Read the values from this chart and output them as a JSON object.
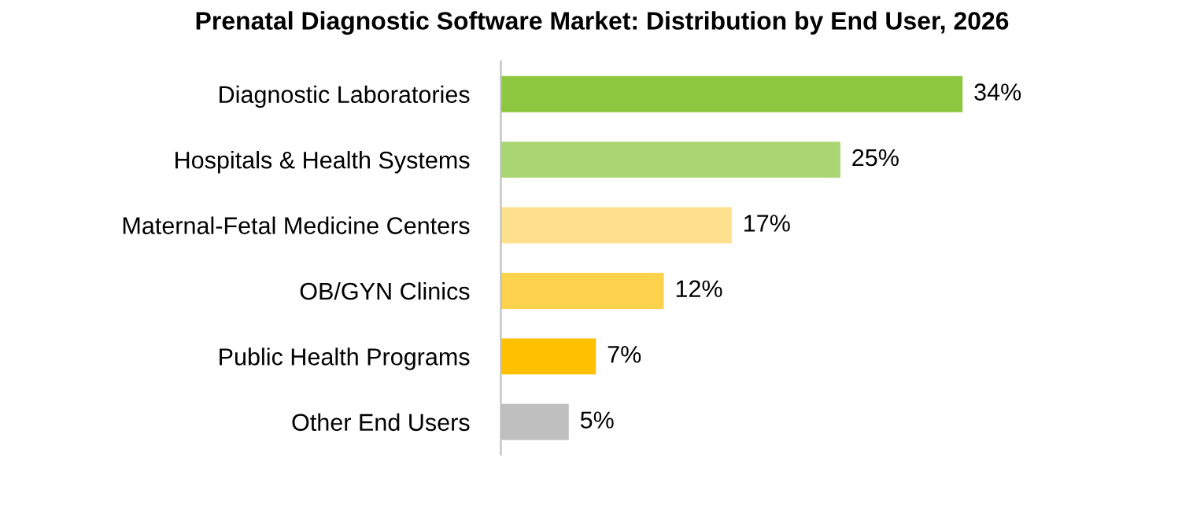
{
  "chart_data": {
    "type": "bar",
    "orientation": "horizontal",
    "title": "Prenatal Diagnostic Software Market: Distribution by End User, 2026",
    "categories": [
      "Diagnostic Laboratories",
      "Hospitals & Health Systems",
      "Maternal-Fetal Medicine Centers",
      "OB/GYN Clinics",
      "Public Health Programs",
      "Other End Users"
    ],
    "values": [
      34,
      25,
      17,
      12,
      7,
      5
    ],
    "colors": [
      "#8dc63f",
      "#a9d672",
      "#ffe08c",
      "#ffd24d",
      "#ffc000",
      "#bfbfbf"
    ],
    "value_labels": [
      "34%",
      "25%",
      "17%",
      "12%",
      "7%",
      "5%"
    ],
    "grid": false,
    "legend": false
  }
}
